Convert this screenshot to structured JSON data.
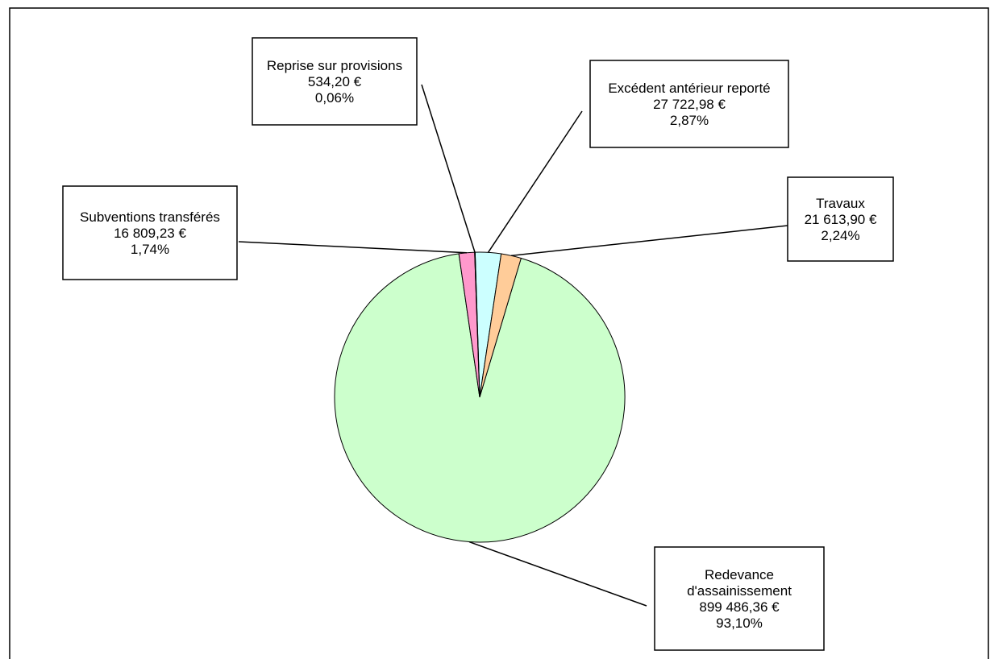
{
  "chart_data": {
    "type": "pie",
    "title": "",
    "currency": "€",
    "slices": [
      {
        "label": "Reprise sur provisions",
        "value_text": "534,20 €",
        "percent_text": "0,06%",
        "value": 534.2,
        "percent": 0.06,
        "color": "#ffffff"
      },
      {
        "label": "Excédent antérieur reporté",
        "value_text": "27 722,98 €",
        "percent_text": "2,87%",
        "value": 27722.98,
        "percent": 2.87,
        "color": "#ccffff"
      },
      {
        "label": "Travaux",
        "value_text": "21 613,90 €",
        "percent_text": "2,24%",
        "value": 21613.9,
        "percent": 2.24,
        "color": "#ffcc99"
      },
      {
        "label": "Redevance d'assainissement",
        "label_lines": [
          "Redevance",
          "d'assainissement"
        ],
        "value_text": "899 486,36 €",
        "percent_text": "93,10%",
        "value": 899486.36,
        "percent": 93.1,
        "color": "#ccffcc"
      },
      {
        "label": "Subventions transférés",
        "value_text": "16 809,23 €",
        "percent_text": "1,74%",
        "value": 16809.23,
        "percent": 1.74,
        "color": "#ff99cc"
      }
    ]
  }
}
